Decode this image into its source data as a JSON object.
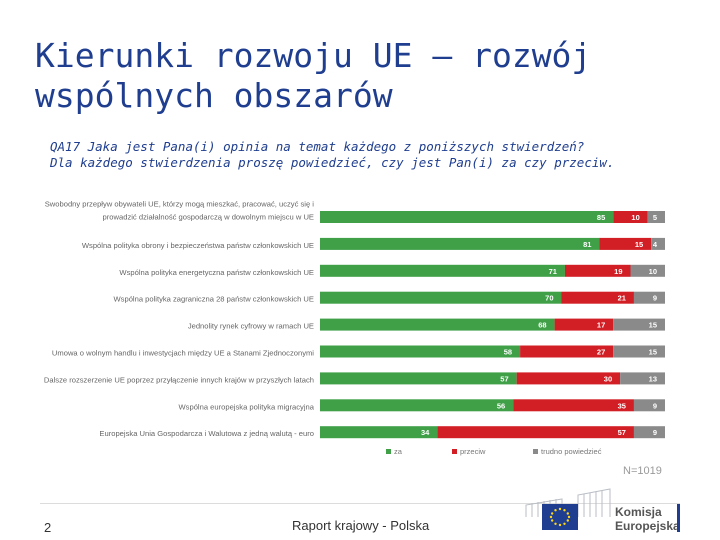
{
  "slide": {
    "title_line1": "Kierunki rozwoju UE – rozwój",
    "title_line2": "wspólnych obszarów",
    "question_line1": "QA17 Jaka jest Pana(i) opinia na temat każdego z poniższych stwierdzeń?",
    "question_line2": "Dla każdego stwierdzenia proszę powiedzieć, czy jest Pan(i) za czy przeciw.",
    "n_label": "N=1019",
    "page_number": "2",
    "footer": "Raport krajowy - Polska",
    "logo_line1": "Komisja",
    "logo_line2": "Europejska"
  },
  "colors": {
    "za": "#3fa048",
    "przeciw": "#d21f26",
    "trudno": "#8a8a8a",
    "title": "#1f3e8f"
  },
  "chart_data": {
    "type": "bar",
    "orientation": "horizontal",
    "stacked": true,
    "categories": [
      [
        "Swobodny przepływ obywateli UE, którzy mogą mieszkać, pracować, uczyć się i",
        "prowadzić działalność gospodarczą w dowolnym miejscu w UE"
      ],
      [
        "Wspólna polityka obrony i bezpieczeństwa państw członkowskich UE"
      ],
      [
        "Wspólna polityka energetyczna państw członkowskich UE"
      ],
      [
        "Wspólna polityka zagraniczna 28 państw członkowskich UE"
      ],
      [
        "Jednolity rynek cyfrowy w ramach UE"
      ],
      [
        "Umowa o wolnym handlu i inwestycjach między UE a Stanami Zjednoczonymi"
      ],
      [
        "Dalsze rozszerzenie UE poprzez przyłączenie innych krajów w przyszłych latach"
      ],
      [
        "Wspólna europejska polityka migracyjna"
      ],
      [
        "Europejska Unia Gospodarcza i Walutowa z jedną walutą - euro"
      ]
    ],
    "series": [
      {
        "name": "za",
        "values": [
          85,
          81,
          71,
          70,
          68,
          58,
          57,
          56,
          34
        ]
      },
      {
        "name": "przeciw",
        "values": [
          10,
          15,
          19,
          21,
          17,
          27,
          30,
          35,
          57
        ]
      },
      {
        "name": "trudno powiedzieć",
        "values": [
          5,
          4,
          10,
          9,
          15,
          15,
          13,
          9,
          9
        ]
      }
    ],
    "xlim": [
      0,
      100
    ],
    "legend": "bottom"
  }
}
